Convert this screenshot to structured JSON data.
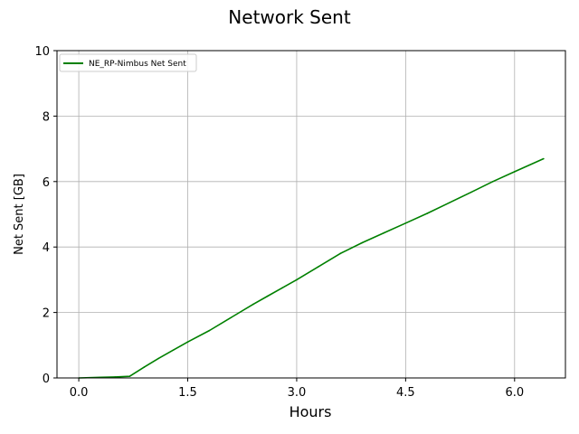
{
  "chart_data": {
    "type": "line",
    "title": "Network Sent",
    "xlabel": "Hours",
    "ylabel": "Net Sent [GB]",
    "xlim": [
      -0.3,
      6.7
    ],
    "ylim": [
      0,
      10
    ],
    "xticks": [
      0.0,
      1.5,
      3.0,
      4.5,
      6.0
    ],
    "xtick_labels": [
      "0.0",
      "1.5",
      "3.0",
      "4.5",
      "6.0"
    ],
    "yticks": [
      0,
      2,
      4,
      6,
      8,
      10
    ],
    "ytick_labels": [
      "0",
      "2",
      "4",
      "6",
      "8",
      "10"
    ],
    "grid": true,
    "legend_position": "top-left",
    "series": [
      {
        "name": "NE_RP-Nimbus Net Sent",
        "color": "#008000",
        "x": [
          0.0,
          0.3,
          0.5,
          0.7,
          0.9,
          1.1,
          1.3,
          1.5,
          1.8,
          2.1,
          2.4,
          2.6,
          2.8,
          3.0,
          3.3,
          3.6,
          3.9,
          4.2,
          4.5,
          4.8,
          5.1,
          5.4,
          5.7,
          6.0,
          6.4
        ],
        "values": [
          0.0,
          0.02,
          0.03,
          0.05,
          0.33,
          0.6,
          0.85,
          1.1,
          1.45,
          1.85,
          2.25,
          2.5,
          2.75,
          3.0,
          3.4,
          3.8,
          4.13,
          4.43,
          4.73,
          5.03,
          5.35,
          5.67,
          6.0,
          6.3,
          6.7
        ]
      }
    ]
  }
}
